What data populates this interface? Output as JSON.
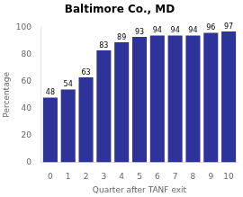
{
  "chart_data": {
    "type": "bar",
    "title": "Baltimore Co., MD",
    "xlabel": "Quarter after TANF exit",
    "ylabel": "Percentage",
    "categories": [
      0,
      1,
      2,
      3,
      4,
      5,
      6,
      7,
      8,
      9,
      10
    ],
    "values": [
      48,
      54,
      63,
      83,
      89,
      93,
      94,
      94,
      94,
      96,
      97
    ],
    "color": "#2E3399",
    "ylim": [
      0,
      100
    ],
    "yticks": [
      0,
      20,
      40,
      60,
      80,
      100
    ],
    "grid": false,
    "data_labels": true
  }
}
